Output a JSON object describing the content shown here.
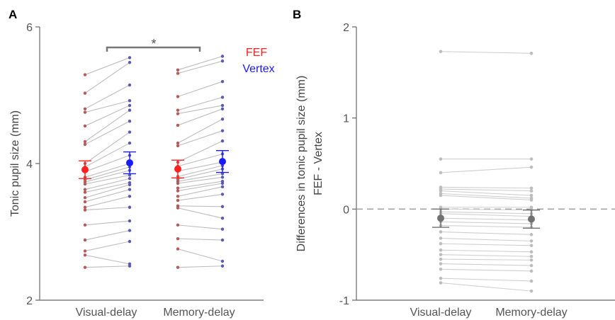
{
  "colors": {
    "fef": "#ff2020",
    "vertex": "#1a1aff",
    "fef_dot": "#b45a5a",
    "vertex_dot": "#5a5ab4",
    "line": "#bdbdbd",
    "axis": "#666666",
    "diff_dot": "#bdbdbd",
    "diff_mean": "#707070"
  },
  "chart_data": [
    {
      "panel": "A",
      "type": "scatter",
      "ylabel": "Tonic pupil size (mm)",
      "ylim": [
        2,
        6
      ],
      "yticks": [
        2,
        4,
        6
      ],
      "yticklabels": [
        "2",
        "4",
        "6"
      ],
      "categories": [
        "Visual-delay",
        "Memory-delay"
      ],
      "series_names": [
        "FEF",
        "Vertex"
      ],
      "significance": "*",
      "legend_position": "top-right",
      "visual_fef": [
        5.3,
        5.03,
        4.8,
        4.75,
        4.55,
        4.32,
        4.28,
        4.0,
        3.95,
        3.88,
        3.8,
        3.76,
        3.73,
        3.7,
        3.62,
        3.58,
        3.5,
        3.44,
        3.36,
        3.32,
        3.1,
        2.88,
        2.72,
        2.66,
        2.48
      ],
      "visual_vertex": [
        5.55,
        5.48,
        5.15,
        4.92,
        4.85,
        4.78,
        4.62,
        4.46,
        4.3,
        4.12,
        4.0,
        3.95,
        3.9,
        3.83,
        3.78,
        3.72,
        3.69,
        3.62,
        3.52,
        3.36,
        3.16,
        3.02,
        2.86,
        2.53,
        2.5
      ],
      "memory_fef": [
        5.37,
        5.32,
        4.98,
        4.78,
        4.73,
        4.56,
        4.3,
        4.26,
        4.02,
        3.96,
        3.89,
        3.81,
        3.77,
        3.74,
        3.71,
        3.64,
        3.6,
        3.52,
        3.46,
        3.38,
        3.35,
        3.1,
        2.9,
        2.75,
        2.48
      ],
      "memory_vertex": [
        5.57,
        5.5,
        5.2,
        4.97,
        4.85,
        4.8,
        4.65,
        4.48,
        4.33,
        4.14,
        4.02,
        3.97,
        3.92,
        3.85,
        3.8,
        3.74,
        3.71,
        3.66,
        3.55,
        3.37,
        3.2,
        3.04,
        2.88,
        2.57,
        2.5
      ],
      "mean_fef": [
        3.91,
        3.92
      ],
      "mean_vertex": [
        4.01,
        4.03
      ],
      "err_fef": [
        0.13,
        0.13
      ],
      "err_vertex": [
        0.16,
        0.16
      ]
    },
    {
      "panel": "B",
      "type": "scatter",
      "ylabel": "Differences in tonic pupil size (mm)",
      "ylabel2": "FEF - Vertex",
      "ylim": [
        -1,
        2
      ],
      "yticks": [
        -1,
        0,
        1,
        2
      ],
      "yticklabels": [
        "-1",
        "0",
        "1",
        "2"
      ],
      "categories": [
        "Visual-delay",
        "Memory-delay"
      ],
      "visual_diff": [
        1.73,
        0.55,
        0.4,
        0.24,
        0.22,
        0.2,
        0.17,
        0.15,
        0.02,
        0.0,
        -0.03,
        -0.1,
        -0.18,
        -0.25,
        -0.32,
        -0.38,
        -0.45,
        -0.5,
        -0.55,
        -0.6,
        -0.66,
        -0.76,
        -0.81,
        -0.05,
        -0.14
      ],
      "memory_diff": [
        1.71,
        0.55,
        0.46,
        0.23,
        0.2,
        0.15,
        0.12,
        0.1,
        0.02,
        -0.01,
        -0.05,
        -0.12,
        -0.2,
        -0.28,
        -0.35,
        -0.4,
        -0.47,
        -0.52,
        -0.56,
        -0.62,
        -0.68,
        -0.79,
        -0.9,
        -0.08,
        -0.16
      ],
      "mean_diff": [
        -0.1,
        -0.11
      ],
      "err_diff": [
        0.1,
        0.1
      ]
    }
  ]
}
